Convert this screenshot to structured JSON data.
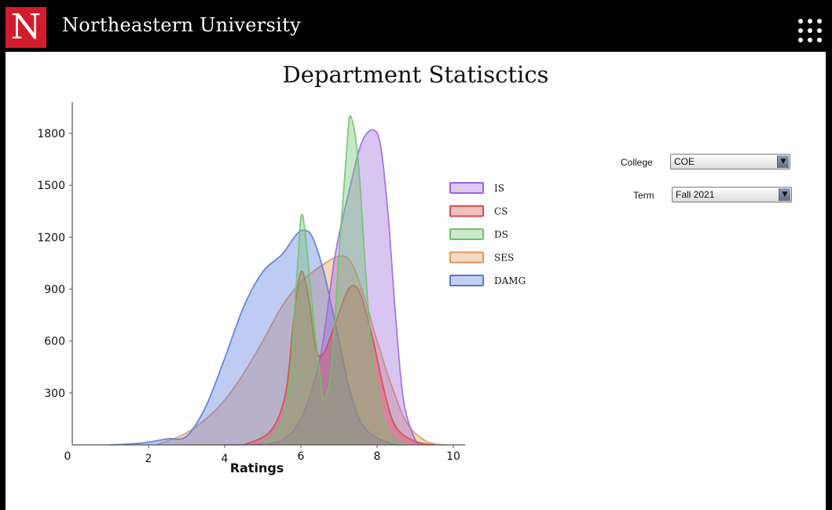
{
  "header": {
    "logo_letter": "N",
    "brand": "Northeastern University",
    "menu_icon": "grid-dots-icon"
  },
  "filters": {
    "college": {
      "label": "College",
      "value": "COE"
    },
    "term": {
      "label": "Term",
      "value": "Fall 2021"
    }
  },
  "chart_data": {
    "type": "area",
    "subtype": "density",
    "title": "Department Statisctics",
    "xlabel": "Ratings",
    "ylabel": "",
    "xlim": [
      0,
      10
    ],
    "ylim": [
      0,
      1950
    ],
    "x_ticks": [
      "0",
      "2",
      "4",
      "6",
      "8",
      "10"
    ],
    "y_ticks": [
      "300",
      "600",
      "900",
      "1200",
      "1500",
      "1800"
    ],
    "legend_position": "right",
    "grid": false,
    "series": [
      {
        "name": "IS",
        "color": "#9966dd",
        "points": [
          [
            4.0,
            0
          ],
          [
            5.0,
            5
          ],
          [
            5.5,
            30
          ],
          [
            6.0,
            150
          ],
          [
            6.5,
            500
          ],
          [
            6.9,
            1100
          ],
          [
            7.3,
            1500
          ],
          [
            7.6,
            1750
          ],
          [
            7.9,
            1820
          ],
          [
            8.1,
            1720
          ],
          [
            8.3,
            1300
          ],
          [
            8.5,
            700
          ],
          [
            8.7,
            250
          ],
          [
            9.0,
            30
          ],
          [
            9.2,
            0
          ]
        ]
      },
      {
        "name": "CS",
        "color": "#d24a4a",
        "points": [
          [
            4.5,
            0
          ],
          [
            5.2,
            80
          ],
          [
            5.6,
            300
          ],
          [
            5.8,
            700
          ],
          [
            6.0,
            1000
          ],
          [
            6.2,
            850
          ],
          [
            6.4,
            550
          ],
          [
            6.6,
            530
          ],
          [
            6.9,
            700
          ],
          [
            7.2,
            880
          ],
          [
            7.4,
            920
          ],
          [
            7.6,
            850
          ],
          [
            7.9,
            600
          ],
          [
            8.2,
            300
          ],
          [
            8.5,
            100
          ],
          [
            9.0,
            20
          ],
          [
            9.5,
            0
          ]
        ]
      },
      {
        "name": "DS",
        "color": "#6cc36c",
        "points": [
          [
            5.0,
            0
          ],
          [
            5.6,
            200
          ],
          [
            5.9,
            1000
          ],
          [
            6.0,
            1310
          ],
          [
            6.1,
            1250
          ],
          [
            6.3,
            800
          ],
          [
            6.5,
            400
          ],
          [
            6.6,
            260
          ],
          [
            6.8,
            450
          ],
          [
            7.0,
            1100
          ],
          [
            7.2,
            1700
          ],
          [
            7.3,
            1900
          ],
          [
            7.5,
            1650
          ],
          [
            7.7,
            1000
          ],
          [
            7.9,
            450
          ],
          [
            8.2,
            120
          ],
          [
            8.5,
            20
          ],
          [
            8.8,
            0
          ]
        ]
      },
      {
        "name": "SES",
        "color": "#e69455",
        "points": [
          [
            2.2,
            0
          ],
          [
            3.0,
            70
          ],
          [
            3.8,
            210
          ],
          [
            4.4,
            380
          ],
          [
            5.0,
            600
          ],
          [
            5.5,
            800
          ],
          [
            6.0,
            940
          ],
          [
            6.5,
            1030
          ],
          [
            7.0,
            1090
          ],
          [
            7.3,
            1060
          ],
          [
            7.6,
            900
          ],
          [
            8.0,
            600
          ],
          [
            8.4,
            330
          ],
          [
            8.8,
            120
          ],
          [
            9.3,
            20
          ],
          [
            9.8,
            0
          ]
        ]
      },
      {
        "name": "DAMG",
        "color": "#5577dd",
        "points": [
          [
            1.0,
            0
          ],
          [
            1.8,
            10
          ],
          [
            2.5,
            35
          ],
          [
            3.0,
            50
          ],
          [
            3.5,
            220
          ],
          [
            4.0,
            500
          ],
          [
            4.5,
            800
          ],
          [
            5.0,
            1000
          ],
          [
            5.5,
            1100
          ],
          [
            5.9,
            1220
          ],
          [
            6.1,
            1240
          ],
          [
            6.3,
            1200
          ],
          [
            6.6,
            1000
          ],
          [
            7.0,
            600
          ],
          [
            7.3,
            300
          ],
          [
            7.6,
            120
          ],
          [
            8.0,
            40
          ],
          [
            8.5,
            0
          ]
        ]
      }
    ],
    "draw_order": [
      "SES",
      "DAMG",
      "IS",
      "CS",
      "DS"
    ]
  }
}
